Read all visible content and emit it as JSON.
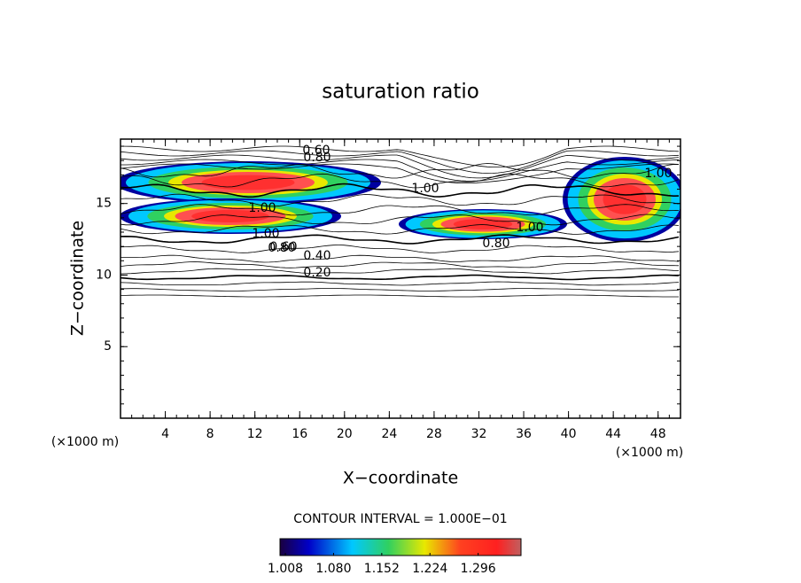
{
  "chart_data": {
    "type": "contour",
    "title": "saturation ratio",
    "x_label": "X−coordinate",
    "y_label": "Z−coordinate",
    "x_unit": "(×1000 m)",
    "y_unit": "(×1000 m)",
    "xlim": [
      0,
      50
    ],
    "ylim": [
      0,
      19.5
    ],
    "xticks": [
      4,
      8,
      12,
      16,
      20,
      24,
      28,
      32,
      36,
      40,
      44,
      48
    ],
    "yticks": [
      5,
      10,
      15
    ],
    "contour_interval": "CONTOUR INTERVAL = 1.000E−01",
    "contour_labels": [
      "0.20",
      "0.40",
      "0.60",
      "0.80",
      "1.00",
      "1.00",
      "0.80",
      "1.00",
      "1.00",
      "0.60",
      "0.80",
      "1.00"
    ],
    "colorbar": {
      "clim": [
        1.0,
        1.36
      ],
      "ticks": [
        1.008,
        {
          "value": 1.08,
          "label": "1.080"
        },
        1.152,
        1.224,
        1.296
      ]
    }
  }
}
